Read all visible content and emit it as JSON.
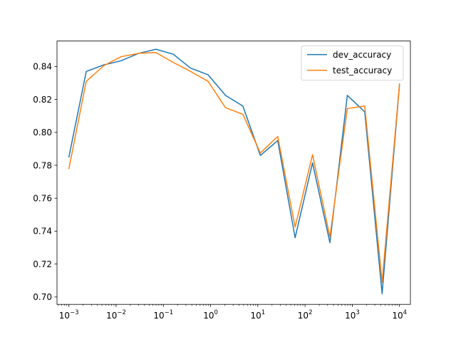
{
  "chart_data": {
    "type": "line",
    "title": "",
    "xlabel": "",
    "ylabel": "",
    "xscale": "log",
    "xlim": [
      0.00056,
      17000
    ],
    "ylim": [
      0.6955,
      0.8555
    ],
    "grid": false,
    "legend_position": "top-right",
    "x": [
      0.001,
      0.00233,
      0.00546,
      0.0127,
      0.0298,
      0.0695,
      0.162,
      0.379,
      0.886,
      2.07,
      4.83,
      11.3,
      26.4,
      61.6,
      144,
      336,
      785,
      1833,
      4281,
      10000
    ],
    "series": [
      {
        "name": "dev_accuracy",
        "color": "#1f77b4",
        "values": [
          0.785,
          0.837,
          0.841,
          0.8435,
          0.848,
          0.8505,
          0.8475,
          0.839,
          0.835,
          0.8225,
          0.816,
          0.786,
          0.795,
          0.736,
          0.7815,
          0.733,
          0.8225,
          0.8125,
          0.702,
          0.829
        ]
      },
      {
        "name": "test_accuracy",
        "color": "#ff7f0e",
        "values": [
          0.778,
          0.831,
          0.8405,
          0.846,
          0.848,
          0.8485,
          0.8425,
          0.837,
          0.831,
          0.815,
          0.811,
          0.7875,
          0.7975,
          0.7425,
          0.7865,
          0.7365,
          0.8145,
          0.816,
          0.709,
          0.8295
        ]
      }
    ],
    "y_ticks": [
      0.7,
      0.72,
      0.74,
      0.76,
      0.78,
      0.8,
      0.82,
      0.84
    ],
    "y_tick_labels": [
      "0.70",
      "0.72",
      "0.74",
      "0.76",
      "0.78",
      "0.80",
      "0.82",
      "0.84"
    ],
    "x_ticks": [
      0.001,
      0.01,
      0.1,
      1,
      10,
      100,
      1000,
      10000
    ],
    "x_tick_labels": [
      {
        "base": "10",
        "exp": "−3"
      },
      {
        "base": "10",
        "exp": "−2"
      },
      {
        "base": "10",
        "exp": "−1"
      },
      {
        "base": "10",
        "exp": "0"
      },
      {
        "base": "10",
        "exp": "1"
      },
      {
        "base": "10",
        "exp": "2"
      },
      {
        "base": "10",
        "exp": "3"
      },
      {
        "base": "10",
        "exp": "4"
      }
    ]
  }
}
